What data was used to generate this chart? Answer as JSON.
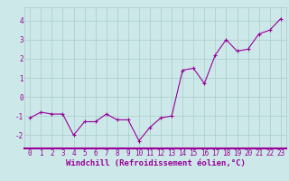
{
  "x": [
    0,
    1,
    2,
    3,
    4,
    5,
    6,
    7,
    8,
    9,
    10,
    11,
    12,
    13,
    14,
    15,
    16,
    17,
    18,
    19,
    20,
    21,
    22,
    23
  ],
  "y": [
    -1.1,
    -0.8,
    -0.9,
    -0.9,
    -2.0,
    -1.3,
    -1.3,
    -0.9,
    -1.2,
    -1.2,
    -2.3,
    -1.6,
    -1.1,
    -1.0,
    1.4,
    1.5,
    0.7,
    2.2,
    3.0,
    2.4,
    2.5,
    3.3,
    3.5,
    4.1
  ],
  "line_color": "#990099",
  "marker": "+",
  "marker_size": 3,
  "linewidth": 0.8,
  "bg_color": "#cce8e8",
  "grid_color": "#aacccc",
  "xlabel": "Windchill (Refroidissement éolien,°C)",
  "xlabel_color": "#990099",
  "tick_color": "#990099",
  "xlim": [
    -0.5,
    23.5
  ],
  "ylim": [
    -2.7,
    4.7
  ],
  "yticks": [
    -2,
    -1,
    0,
    1,
    2,
    3,
    4
  ],
  "xticks": [
    0,
    1,
    2,
    3,
    4,
    5,
    6,
    7,
    8,
    9,
    10,
    11,
    12,
    13,
    14,
    15,
    16,
    17,
    18,
    19,
    20,
    21,
    22,
    23
  ],
  "tick_fontsize": 5.5,
  "xlabel_fontsize": 6.5
}
